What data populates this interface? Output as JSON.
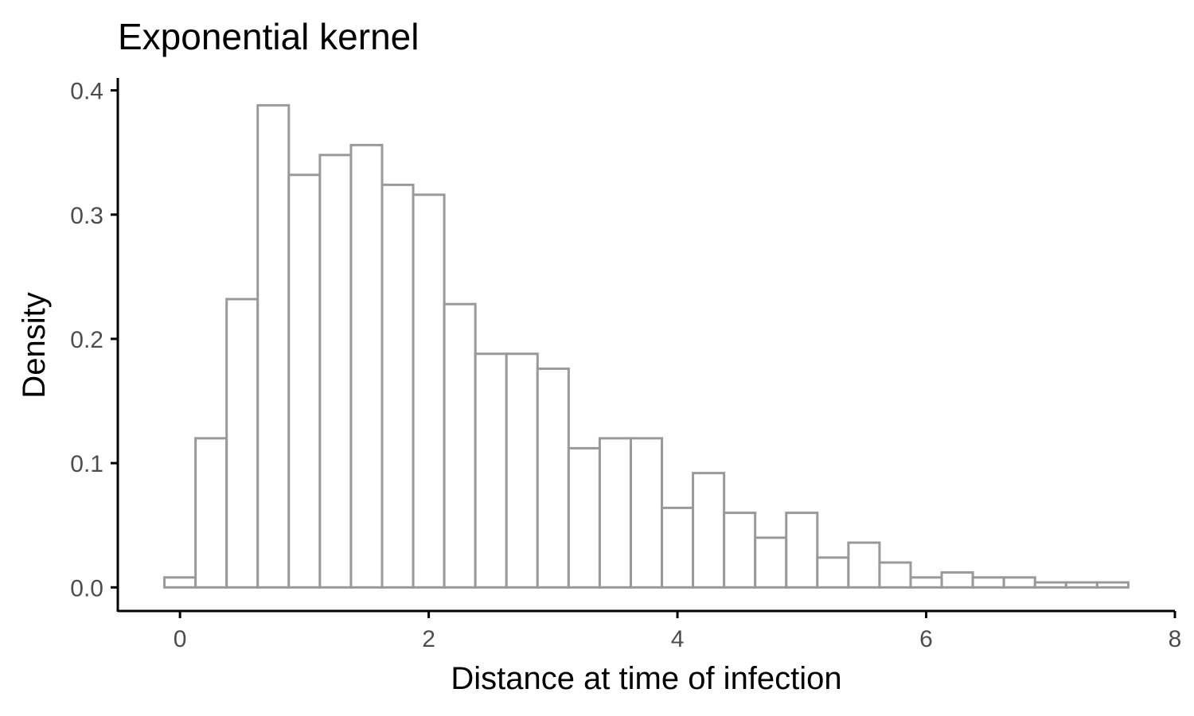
{
  "chart_data": {
    "type": "bar",
    "subtype": "histogram",
    "title": "Exponential kernel",
    "xlabel": "Distance at time of infection",
    "ylabel": "Density",
    "xlim": [
      -0.5,
      8
    ],
    "ylim": [
      -0.019,
      0.41
    ],
    "x_ticks": [
      0,
      2,
      4,
      6,
      8
    ],
    "x_tick_labels": [
      "0",
      "2",
      "4",
      "6",
      "8"
    ],
    "y_ticks": [
      0.0,
      0.1,
      0.2,
      0.3,
      0.4
    ],
    "y_tick_labels": [
      "0.0",
      "0.1",
      "0.2",
      "0.3",
      "0.4"
    ],
    "bin_start": -0.125,
    "bin_width": 0.25,
    "values": [
      0.008,
      0.12,
      0.232,
      0.388,
      0.332,
      0.348,
      0.356,
      0.324,
      0.316,
      0.228,
      0.188,
      0.188,
      0.176,
      0.112,
      0.12,
      0.12,
      0.064,
      0.092,
      0.06,
      0.04,
      0.06,
      0.024,
      0.036,
      0.02,
      0.008,
      0.012,
      0.008,
      0.008,
      0.004,
      0.004,
      0.004
    ],
    "bar_fill": "#ffffff",
    "bar_outline": "#999999",
    "grid": false,
    "legend": "none"
  }
}
